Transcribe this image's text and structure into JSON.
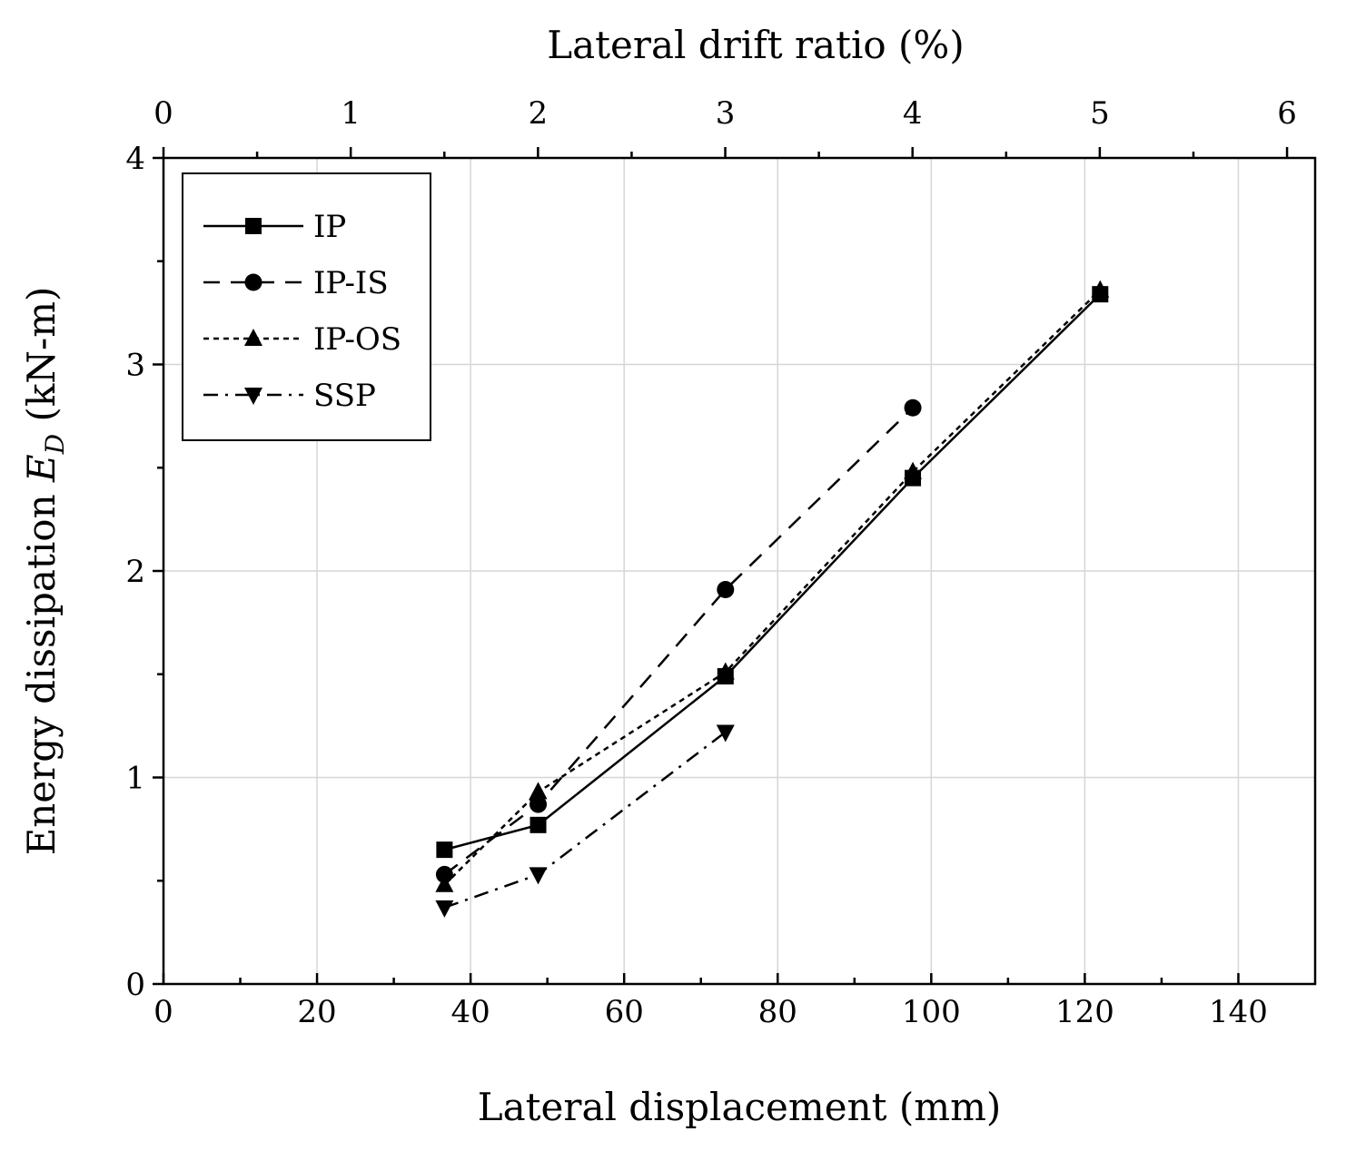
{
  "chart_data": {
    "type": "line",
    "xlabel": "Lateral displacement (mm)",
    "ylabel_prefix": "Energy dissipation ",
    "ylabel_var": "E",
    "ylabel_sub": "D",
    "ylabel_suffix": " (kN-m)",
    "top_xlabel": "Lateral drift ratio (%)",
    "xlim": [
      0,
      150
    ],
    "ylim": [
      0,
      4
    ],
    "top_xlim": [
      0,
      6.15
    ],
    "x_ticks": [
      0,
      20,
      40,
      60,
      80,
      100,
      120,
      140
    ],
    "x_tick_labels": [
      "0",
      "20",
      "40",
      "60",
      "80",
      "100",
      "120",
      "140"
    ],
    "y_ticks": [
      0,
      1,
      2,
      3,
      4
    ],
    "y_tick_labels": [
      "0",
      "1",
      "2",
      "3",
      "4"
    ],
    "top_ticks": [
      0,
      1,
      2,
      3,
      4,
      5,
      6
    ],
    "top_tick_labels": [
      "0",
      "1",
      "2",
      "3",
      "4",
      "5",
      "6"
    ],
    "grid": true,
    "legend_position": "top-left",
    "series": [
      {
        "name": "IP",
        "marker": "square",
        "dash": "solid",
        "x": [
          36.6,
          48.8,
          73.2,
          97.6,
          122.0
        ],
        "y": [
          0.65,
          0.77,
          1.49,
          2.45,
          3.34
        ]
      },
      {
        "name": "IP-IS",
        "marker": "circle",
        "dash": "dashed",
        "x": [
          36.6,
          48.8,
          73.2,
          97.6
        ],
        "y": [
          0.53,
          0.87,
          1.91,
          2.79
        ]
      },
      {
        "name": "IP-OS",
        "marker": "triangle-up",
        "dash": "dotted",
        "x": [
          36.6,
          48.8,
          73.2,
          97.6,
          122.0
        ],
        "y": [
          0.48,
          0.93,
          1.51,
          2.48,
          3.36
        ]
      },
      {
        "name": "SSP",
        "marker": "triangle-down",
        "dash": "dashdot",
        "x": [
          36.6,
          48.8,
          73.2
        ],
        "y": [
          0.37,
          0.53,
          1.22
        ]
      }
    ]
  }
}
